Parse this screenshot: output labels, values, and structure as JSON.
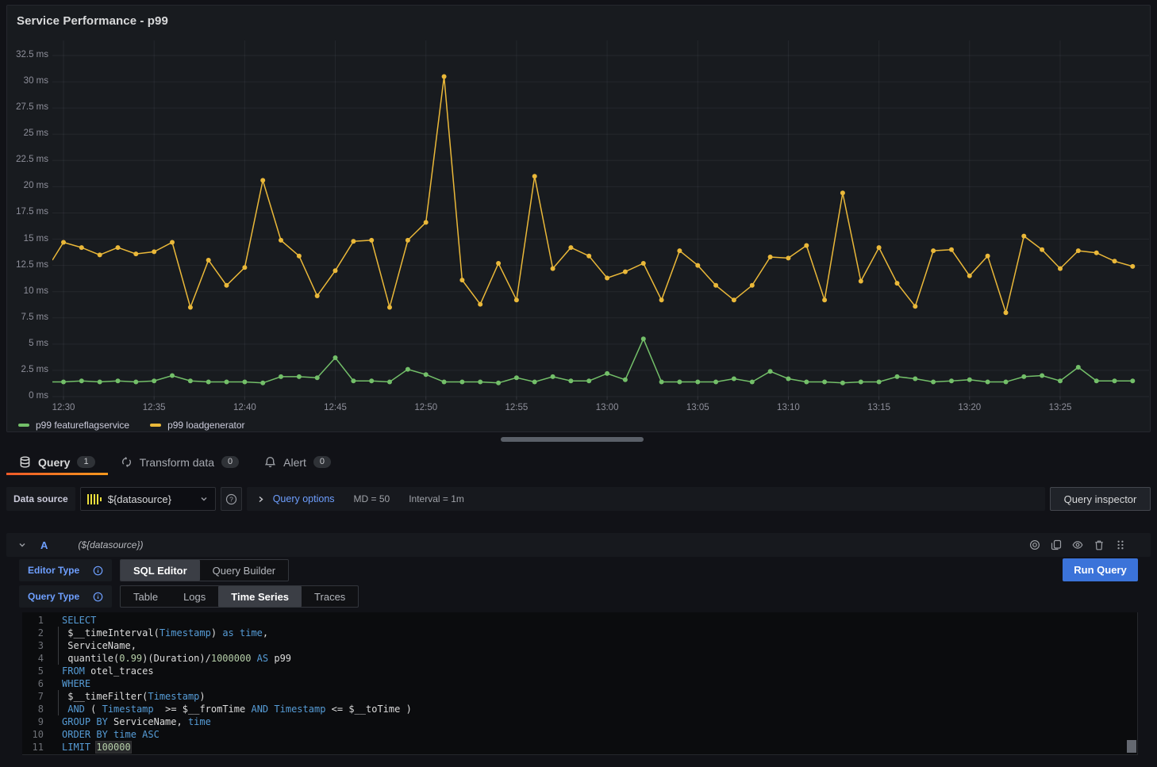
{
  "panel": {
    "title": "Service Performance - p99"
  },
  "chart_data": {
    "type": "line",
    "title": "Service Performance - p99",
    "x": [
      "12:30",
      "12:31",
      "12:32",
      "12:33",
      "12:34",
      "12:35",
      "12:36",
      "12:37",
      "12:38",
      "12:39",
      "12:40",
      "12:41",
      "12:42",
      "12:43",
      "12:44",
      "12:45",
      "12:46",
      "12:47",
      "12:48",
      "12:49",
      "12:50",
      "12:51",
      "12:52",
      "12:53",
      "12:54",
      "12:55",
      "12:56",
      "12:57",
      "12:58",
      "12:59",
      "13:00",
      "13:01",
      "13:02",
      "13:03",
      "13:04",
      "13:05",
      "13:06",
      "13:07",
      "13:08",
      "13:09",
      "13:10",
      "13:11",
      "13:12",
      "13:13",
      "13:14",
      "13:15",
      "13:16",
      "13:17",
      "13:18",
      "13:19",
      "13:20",
      "13:21",
      "13:22",
      "13:23",
      "13:24",
      "13:25",
      "13:26",
      "13:27",
      "13:28",
      "13:29"
    ],
    "x_tick_every": 5,
    "series": [
      {
        "name": "p99 featureflagservice",
        "color": "#73BF69",
        "lead_in": 1.4,
        "values": [
          1.4,
          1.5,
          1.4,
          1.5,
          1.4,
          1.5,
          2.0,
          1.5,
          1.4,
          1.4,
          1.4,
          1.3,
          1.9,
          1.9,
          1.8,
          3.7,
          1.5,
          1.5,
          1.4,
          2.6,
          2.1,
          1.4,
          1.4,
          1.4,
          1.3,
          1.8,
          1.4,
          1.9,
          1.5,
          1.5,
          2.2,
          1.6,
          5.5,
          1.4,
          1.4,
          1.4,
          1.4,
          1.7,
          1.4,
          2.4,
          1.7,
          1.4,
          1.4,
          1.3,
          1.4,
          1.4,
          1.9,
          1.7,
          1.4,
          1.5,
          1.6,
          1.4,
          1.4,
          1.9,
          2.0,
          1.5,
          2.8,
          1.5,
          1.5,
          1.5
        ]
      },
      {
        "name": "p99 loadgenerator",
        "color": "#EAB839",
        "lead_in": 13.0,
        "values": [
          14.7,
          14.2,
          13.5,
          14.2,
          13.6,
          13.8,
          14.7,
          8.5,
          13.0,
          10.6,
          12.3,
          20.6,
          14.9,
          13.4,
          9.6,
          12.0,
          14.8,
          14.9,
          8.5,
          14.9,
          16.6,
          30.5,
          11.1,
          8.8,
          12.7,
          9.2,
          21.0,
          12.2,
          14.2,
          13.4,
          11.3,
          11.9,
          12.7,
          9.2,
          13.9,
          12.5,
          10.6,
          9.2,
          10.6,
          13.3,
          13.2,
          14.4,
          9.2,
          19.4,
          11.0,
          14.2,
          10.8,
          8.6,
          13.9,
          14.0,
          11.5,
          13.4,
          8.0,
          15.3,
          14.0,
          12.2,
          13.9,
          13.7,
          12.9,
          12.4
        ]
      }
    ],
    "y_ticks": [
      {
        "v": 0,
        "label": "0 ms"
      },
      {
        "v": 2.5,
        "label": "2.5 ms"
      },
      {
        "v": 5,
        "label": "5 ms"
      },
      {
        "v": 7.5,
        "label": "7.5 ms"
      },
      {
        "v": 10,
        "label": "10 ms"
      },
      {
        "v": 12.5,
        "label": "12.5 ms"
      },
      {
        "v": 15,
        "label": "15 ms"
      },
      {
        "v": 17.5,
        "label": "17.5 ms"
      },
      {
        "v": 20,
        "label": "20 ms"
      },
      {
        "v": 22.5,
        "label": "22.5 ms"
      },
      {
        "v": 25,
        "label": "25 ms"
      },
      {
        "v": 27.5,
        "label": "27.5 ms"
      },
      {
        "v": 30,
        "label": "30 ms"
      },
      {
        "v": 32.5,
        "label": "32.5 ms"
      }
    ],
    "ylim": [
      0,
      33.9
    ],
    "grid": true,
    "legend_position": "bottom"
  },
  "tabs": [
    {
      "label": "Query",
      "badge": "1",
      "active": true
    },
    {
      "label": "Transform data",
      "badge": "0",
      "active": false
    },
    {
      "label": "Alert",
      "badge": "0",
      "active": false
    }
  ],
  "datasource_row": {
    "label": "Data source",
    "value": "${datasource}",
    "options_label": "Query options",
    "md": "MD = 50",
    "interval": "Interval = 1m",
    "inspector_label": "Query inspector"
  },
  "query_row": {
    "ref_id": "A",
    "datasource_hint": "(${datasource})"
  },
  "editor": {
    "editor_type_label": "Editor Type",
    "editor_type_options": [
      "SQL Editor",
      "Query Builder"
    ],
    "editor_type_active": "SQL Editor",
    "query_type_label": "Query Type",
    "query_type_options": [
      "Table",
      "Logs",
      "Time Series",
      "Traces"
    ],
    "query_type_active": "Time Series",
    "run_label": "Run Query"
  },
  "code": {
    "lines": [
      {
        "n": "1",
        "segs": [
          [
            "kw",
            "SELECT"
          ]
        ]
      },
      {
        "n": "2",
        "segs": [
          [
            "id",
            " $__timeInterval("
          ],
          [
            "kw",
            "Timestamp"
          ],
          [
            "id",
            ") "
          ],
          [
            "kw",
            "as"
          ],
          [
            "id",
            " "
          ],
          [
            "kw",
            "time"
          ],
          [
            "id",
            ","
          ]
        ]
      },
      {
        "n": "3",
        "segs": [
          [
            "id",
            " ServiceName,"
          ]
        ]
      },
      {
        "n": "4",
        "segs": [
          [
            "id",
            " quantile("
          ],
          [
            "num",
            "0.99"
          ],
          [
            "id",
            ")(Duration)/"
          ],
          [
            "num",
            "1000000"
          ],
          [
            "id",
            " "
          ],
          [
            "kw",
            "AS"
          ],
          [
            "id",
            " p99"
          ]
        ]
      },
      {
        "n": "5",
        "segs": [
          [
            "kw",
            "FROM"
          ],
          [
            "id",
            " otel_traces"
          ]
        ]
      },
      {
        "n": "6",
        "segs": [
          [
            "kw",
            "WHERE"
          ]
        ]
      },
      {
        "n": "7",
        "segs": [
          [
            "id",
            " $__timeFilter("
          ],
          [
            "kw",
            "Timestamp"
          ],
          [
            "id",
            ")"
          ]
        ]
      },
      {
        "n": "8",
        "segs": [
          [
            "id",
            " "
          ],
          [
            "kw",
            "AND"
          ],
          [
            "id",
            " ( "
          ],
          [
            "kw",
            "Timestamp"
          ],
          [
            "id",
            "  >= $__fromTime "
          ],
          [
            "kw",
            "AND"
          ],
          [
            "id",
            " "
          ],
          [
            "kw",
            "Timestamp"
          ],
          [
            "id",
            " <= $__toTime )"
          ]
        ]
      },
      {
        "n": "9",
        "segs": [
          [
            "kw",
            "GROUP BY"
          ],
          [
            "id",
            " ServiceName, "
          ],
          [
            "kw",
            "time"
          ]
        ]
      },
      {
        "n": "10",
        "segs": [
          [
            "kw",
            "ORDER BY"
          ],
          [
            "id",
            " "
          ],
          [
            "kw",
            "time"
          ],
          [
            "id",
            " "
          ],
          [
            "kw",
            "ASC"
          ]
        ]
      },
      {
        "n": "11",
        "segs": [
          [
            "kw",
            "LIMIT"
          ],
          [
            "id",
            " "
          ],
          [
            "hl",
            "100000"
          ]
        ]
      }
    ]
  }
}
